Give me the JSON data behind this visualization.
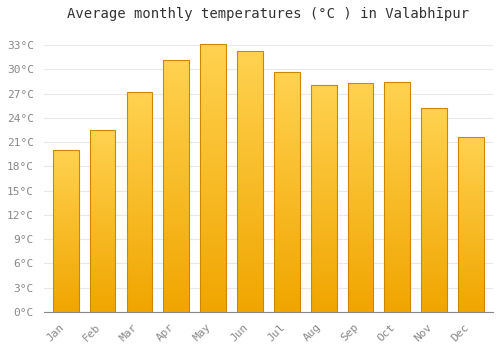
{
  "title": "Average monthly temperatures (°C ) in Valabhīpur",
  "months": [
    "Jan",
    "Feb",
    "Mar",
    "Apr",
    "May",
    "Jun",
    "Jul",
    "Aug",
    "Sep",
    "Oct",
    "Nov",
    "Dec"
  ],
  "temperatures": [
    20.0,
    22.5,
    27.2,
    31.2,
    33.1,
    32.3,
    29.7,
    28.1,
    28.3,
    28.4,
    25.2,
    21.7
  ],
  "bar_color_bottom": "#F0A500",
  "bar_color_top": "#FFD966",
  "bar_edge_color": "#CC8800",
  "background_color": "#ffffff",
  "grid_color": "#e8e8e8",
  "tick_color": "#888888",
  "title_color": "#333333",
  "ylim": [
    0,
    35
  ],
  "yticks": [
    0,
    3,
    6,
    9,
    12,
    15,
    18,
    21,
    24,
    27,
    30,
    33
  ],
  "ytick_labels": [
    "0°C",
    "3°C",
    "6°C",
    "9°C",
    "12°C",
    "15°C",
    "18°C",
    "21°C",
    "24°C",
    "27°C",
    "30°C",
    "33°C"
  ],
  "figsize": [
    5.0,
    3.5
  ],
  "dpi": 100,
  "title_fontsize": 10,
  "tick_fontsize": 8
}
